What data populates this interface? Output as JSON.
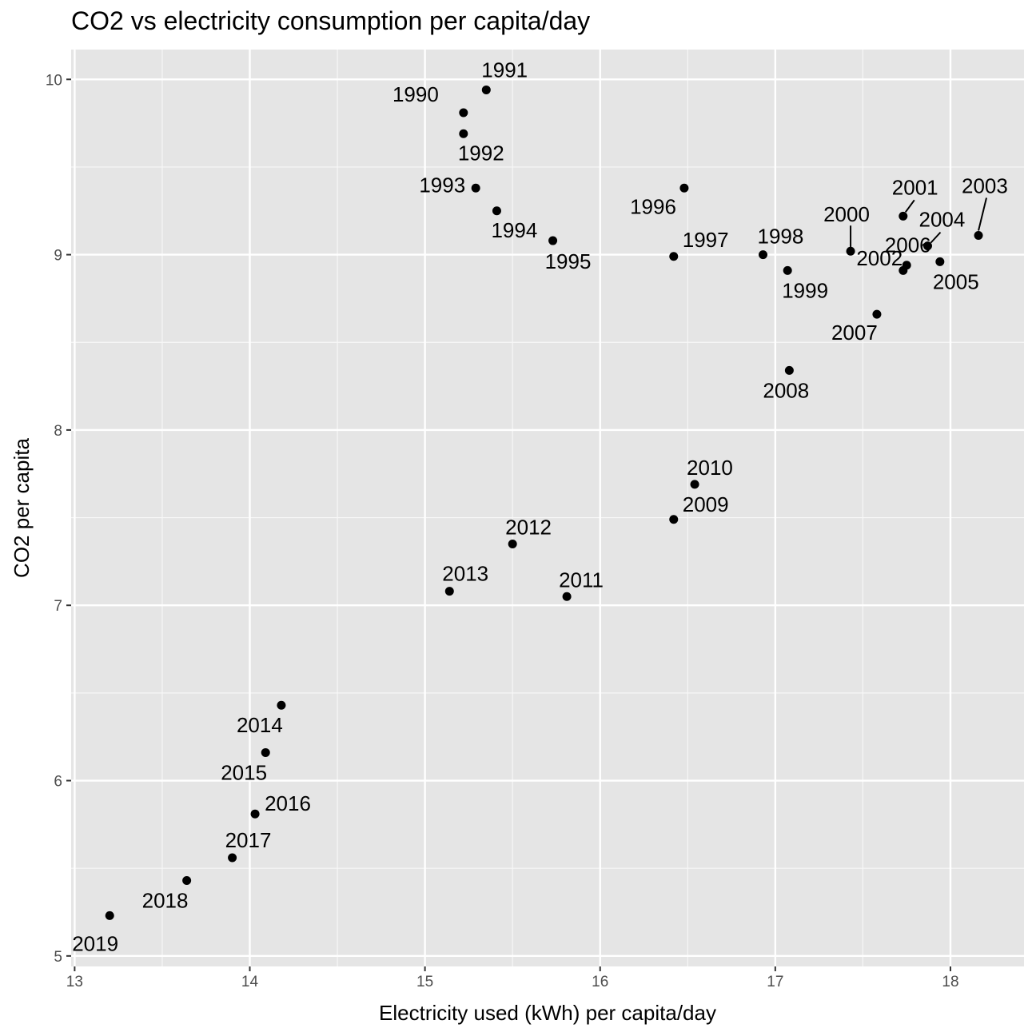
{
  "chart_data": {
    "type": "scatter",
    "title": "CO2 vs electricity consumption per capita/day",
    "xlabel": "Electricity used (kWh) per capita/day",
    "ylabel": "CO2 per capita",
    "xlim": [
      12.98,
      18.42
    ],
    "ylim": [
      4.94,
      10.17
    ],
    "x_ticks": [
      13,
      14,
      15,
      16,
      17,
      18
    ],
    "y_ticks": [
      5,
      6,
      7,
      8,
      9,
      10
    ],
    "grid": true,
    "legend": "none",
    "points": [
      {
        "label": "1990",
        "x": 15.22,
        "y": 9.81
      },
      {
        "label": "1991",
        "x": 15.35,
        "y": 9.94
      },
      {
        "label": "1992",
        "x": 15.22,
        "y": 9.69
      },
      {
        "label": "1993",
        "x": 15.29,
        "y": 9.38
      },
      {
        "label": "1994",
        "x": 15.41,
        "y": 9.25
      },
      {
        "label": "1995",
        "x": 15.73,
        "y": 9.08
      },
      {
        "label": "1996",
        "x": 16.48,
        "y": 9.38
      },
      {
        "label": "1997",
        "x": 16.42,
        "y": 8.99
      },
      {
        "label": "1998",
        "x": 16.93,
        "y": 9.0
      },
      {
        "label": "1999",
        "x": 17.07,
        "y": 8.91
      },
      {
        "label": "2000",
        "x": 17.43,
        "y": 9.02
      },
      {
        "label": "2001",
        "x": 17.73,
        "y": 9.22
      },
      {
        "label": "2002",
        "x": 17.75,
        "y": 8.94
      },
      {
        "label": "2003",
        "x": 18.16,
        "y": 9.11
      },
      {
        "label": "2004",
        "x": 17.87,
        "y": 9.05
      },
      {
        "label": "2005",
        "x": 17.94,
        "y": 8.96
      },
      {
        "label": "2006",
        "x": 17.73,
        "y": 8.91
      },
      {
        "label": "2007",
        "x": 17.58,
        "y": 8.66
      },
      {
        "label": "2008",
        "x": 17.08,
        "y": 8.34
      },
      {
        "label": "2009",
        "x": 16.42,
        "y": 7.49
      },
      {
        "label": "2010",
        "x": 16.54,
        "y": 7.69
      },
      {
        "label": "2011",
        "x": 15.81,
        "y": 7.05
      },
      {
        "label": "2012",
        "x": 15.5,
        "y": 7.35
      },
      {
        "label": "2013",
        "x": 15.14,
        "y": 7.08
      },
      {
        "label": "2014",
        "x": 14.18,
        "y": 6.43
      },
      {
        "label": "2015",
        "x": 14.09,
        "y": 6.16
      },
      {
        "label": "2016",
        "x": 14.03,
        "y": 5.81
      },
      {
        "label": "2017",
        "x": 13.9,
        "y": 5.56
      },
      {
        "label": "2018",
        "x": 13.64,
        "y": 5.43
      },
      {
        "label": "2019",
        "x": 13.2,
        "y": 5.23
      }
    ]
  }
}
